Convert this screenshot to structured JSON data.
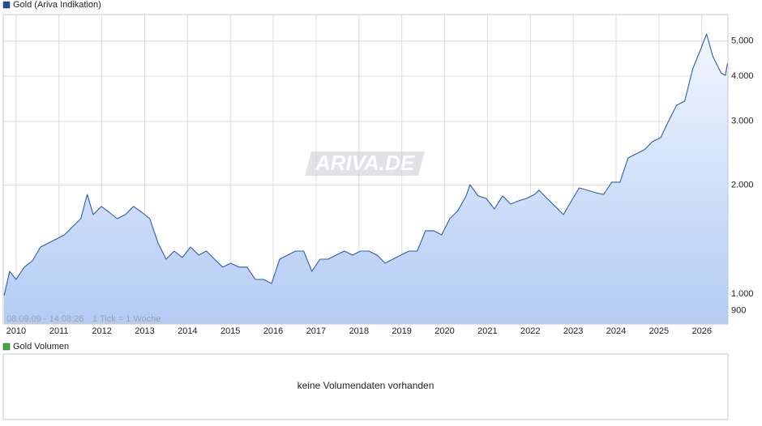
{
  "chart_data": {
    "type": "line",
    "title": "Gold (Ariva Indikation)",
    "period": "08.09.09 - 14.08.26",
    "tick_note": "1 Tick = 1 Woche",
    "watermark": "ARIVA.DE",
    "log_scale": true,
    "grid": true,
    "legend_color": "#1f4e9c",
    "x": [
      2009.72,
      2009.85,
      2010.0,
      2010.19,
      2010.38,
      2010.57,
      2010.76,
      2010.95,
      2011.13,
      2011.32,
      2011.51,
      2011.66,
      2011.8,
      2011.99,
      2012.17,
      2012.36,
      2012.55,
      2012.74,
      2012.93,
      2013.12,
      2013.31,
      2013.5,
      2013.69,
      2013.88,
      2014.07,
      2014.26,
      2014.44,
      2014.63,
      2014.82,
      2015.01,
      2015.2,
      2015.39,
      2015.58,
      2015.77,
      2015.96,
      2016.15,
      2016.34,
      2016.52,
      2016.71,
      2016.9,
      2017.09,
      2017.28,
      2017.47,
      2017.66,
      2017.85,
      2018.04,
      2018.23,
      2018.42,
      2018.61,
      2018.79,
      2018.98,
      2019.17,
      2019.36,
      2019.55,
      2019.74,
      2019.93,
      2020.12,
      2020.31,
      2020.5,
      2020.59,
      2020.78,
      2020.97,
      2021.16,
      2021.35,
      2021.54,
      2021.73,
      2021.91,
      2022.1,
      2022.2,
      2022.39,
      2022.58,
      2022.77,
      2022.96,
      2023.14,
      2023.33,
      2023.52,
      2023.71,
      2023.9,
      2024.09,
      2024.28,
      2024.47,
      2024.66,
      2024.85,
      2025.04,
      2025.22,
      2025.41,
      2025.6,
      2025.79,
      2025.98,
      2026.11,
      2026.26,
      2026.45,
      2026.55,
      2026.6
    ],
    "series": [
      {
        "name": "Gold (Ariva Indikation)",
        "color": "#2a5db0",
        "values": [
          990,
          1155,
          1097,
          1186,
          1235,
          1348,
          1384,
          1420,
          1457,
          1534,
          1615,
          1885,
          1657,
          1745,
          1683,
          1615,
          1657,
          1745,
          1683,
          1615,
          1384,
          1248,
          1314,
          1261,
          1348,
          1281,
          1314,
          1248,
          1186,
          1216,
          1186,
          1186,
          1097,
          1097,
          1069,
          1248,
          1281,
          1314,
          1314,
          1155,
          1248,
          1248,
          1281,
          1314,
          1281,
          1314,
          1314,
          1281,
          1216,
          1248,
          1281,
          1314,
          1314,
          1495,
          1495,
          1457,
          1615,
          1700,
          1866,
          2005,
          1866,
          1837,
          1718,
          1866,
          1772,
          1809,
          1837,
          1885,
          1935,
          1837,
          1745,
          1657,
          1809,
          1964,
          1935,
          1905,
          1885,
          2037,
          2037,
          2377,
          2440,
          2504,
          2636,
          2705,
          2998,
          3323,
          3411,
          4191,
          4768,
          5232,
          4527,
          4085,
          4022,
          4346
        ]
      }
    ],
    "xlim": [
      2009.7,
      2026.61
    ],
    "xticks": [
      2010,
      2011,
      2012,
      2013,
      2014,
      2015,
      2016,
      2017,
      2018,
      2019,
      2020,
      2021,
      2022,
      2023,
      2024,
      2025,
      2026
    ],
    "ylim": [
      826,
      5920
    ],
    "yticks": [
      900,
      {
        "value": 1000,
        "label": "1.000"
      },
      {
        "value": 2000,
        "label": "2.000"
      },
      {
        "value": 3000,
        "label": "3.000"
      },
      {
        "value": 4000,
        "label": "4.000"
      },
      {
        "value": 5000,
        "label": "5.000"
      }
    ]
  },
  "volume_panel": {
    "legend": "Gold Volumen",
    "legend_color": "#3cb043",
    "message": "keine Volumendaten vorhanden"
  }
}
